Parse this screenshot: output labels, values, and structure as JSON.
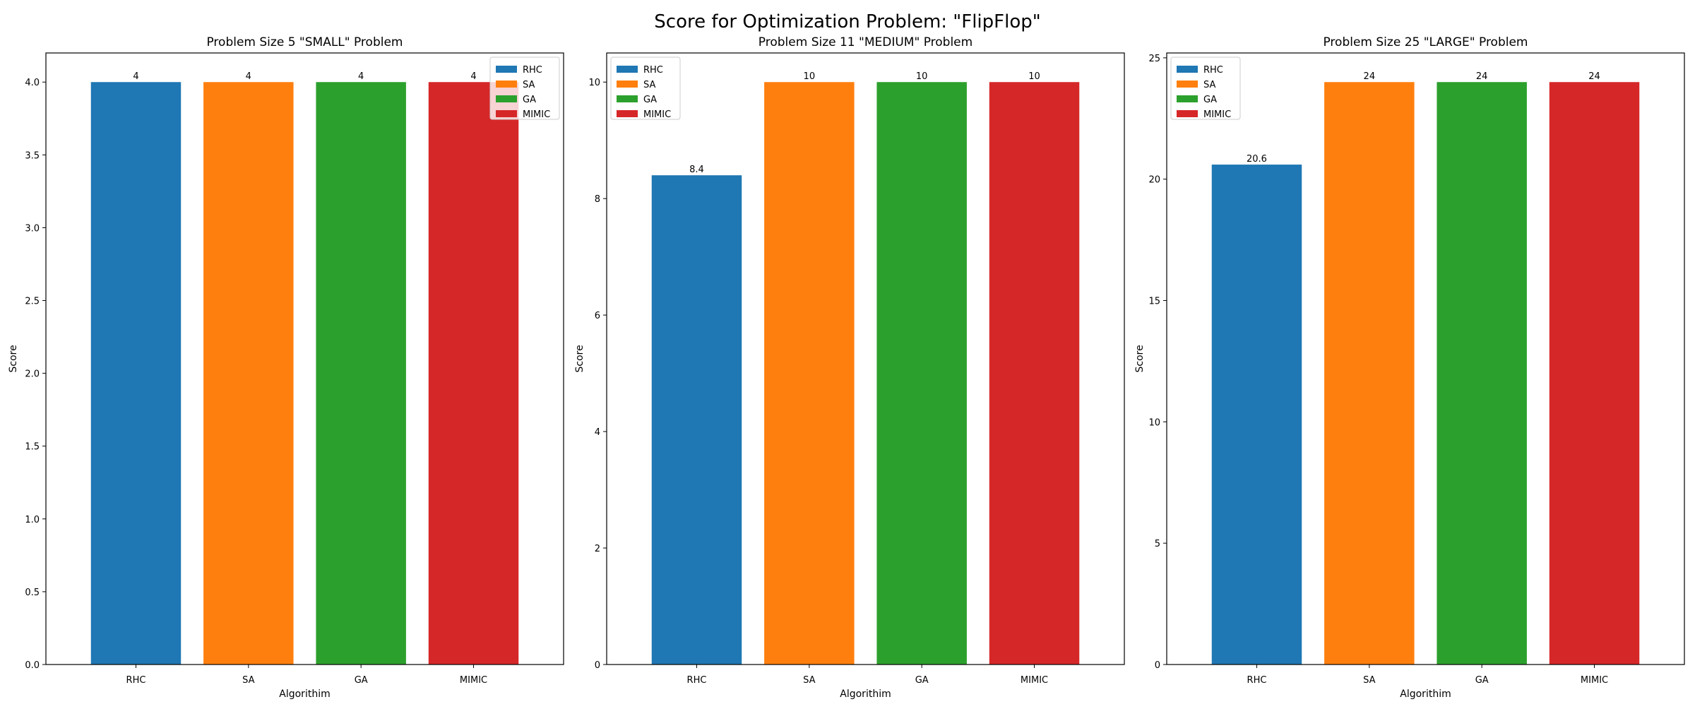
{
  "figure": {
    "suptitle": "Score for Optimization Problem: \"FlipFlop\""
  },
  "chart_data": [
    {
      "type": "bar",
      "title": "Problem Size 5 \"SMALL\" Problem",
      "xlabel": "Algorithim",
      "ylabel": "Score",
      "categories": [
        "RHC",
        "SA",
        "GA",
        "MIMIC"
      ],
      "values": [
        4,
        4,
        4,
        4
      ],
      "value_labels": [
        "4",
        "4",
        "4",
        "4"
      ],
      "colors": [
        "#1f77b4",
        "#ff7f0e",
        "#2ca02c",
        "#d62728"
      ],
      "ylim": [
        0,
        4.2
      ],
      "yticks": [
        0,
        0.5,
        1,
        1.5,
        2,
        2.5,
        3,
        3.5,
        4
      ],
      "ytick_labels": [
        "0.0",
        "0.5",
        "1.0",
        "1.5",
        "2.0",
        "2.5",
        "3.0",
        "3.5",
        "4.0"
      ],
      "legend": [
        "RHC",
        "SA",
        "GA",
        "MIMIC"
      ],
      "legend_placement": "top-right",
      "grid": false
    },
    {
      "type": "bar",
      "title": "Problem Size 11 \"MEDIUM\" Problem",
      "xlabel": "Algorithim",
      "ylabel": "Score",
      "categories": [
        "RHC",
        "SA",
        "GA",
        "MIMIC"
      ],
      "values": [
        8.4,
        10,
        10,
        10
      ],
      "value_labels": [
        "8.4",
        "10",
        "10",
        "10"
      ],
      "colors": [
        "#1f77b4",
        "#ff7f0e",
        "#2ca02c",
        "#d62728"
      ],
      "ylim": [
        0,
        10.5
      ],
      "yticks": [
        0,
        2,
        4,
        6,
        8,
        10
      ],
      "ytick_labels": [
        "0",
        "2",
        "4",
        "6",
        "8",
        "10"
      ],
      "legend": [
        "RHC",
        "SA",
        "GA",
        "MIMIC"
      ],
      "legend_placement": "top-left",
      "grid": false
    },
    {
      "type": "bar",
      "title": "Problem Size 25 \"LARGE\" Problem",
      "xlabel": "Algorithim",
      "ylabel": "Score",
      "categories": [
        "RHC",
        "SA",
        "GA",
        "MIMIC"
      ],
      "values": [
        20.6,
        24,
        24,
        24
      ],
      "value_labels": [
        "20.6",
        "24",
        "24",
        "24"
      ],
      "colors": [
        "#1f77b4",
        "#ff7f0e",
        "#2ca02c",
        "#d62728"
      ],
      "ylim": [
        0,
        25.2
      ],
      "yticks": [
        0,
        5,
        10,
        15,
        20,
        25
      ],
      "ytick_labels": [
        "0",
        "5",
        "10",
        "15",
        "20",
        "25"
      ],
      "legend": [
        "RHC",
        "SA",
        "GA",
        "MIMIC"
      ],
      "legend_placement": "top-left",
      "grid": false
    }
  ]
}
